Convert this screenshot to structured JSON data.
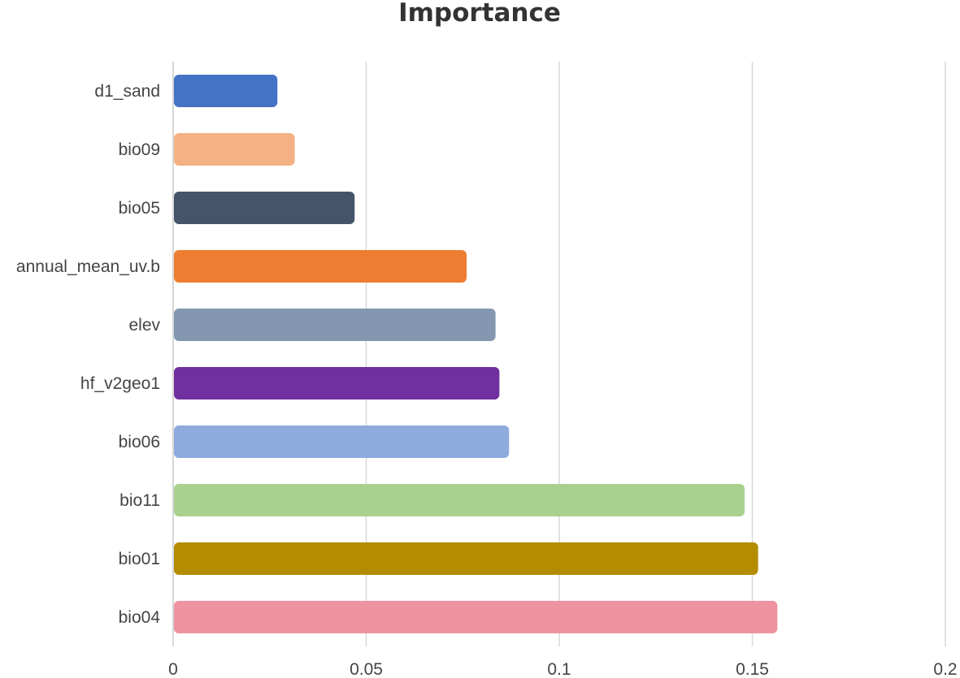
{
  "chart_data": {
    "type": "bar",
    "orientation": "horizontal",
    "title": "Importance",
    "xlabel": "",
    "ylabel": "",
    "xlim": [
      0,
      0.2
    ],
    "x_ticks": [
      "0",
      "0.05",
      "0.1",
      "0.15",
      "0.2"
    ],
    "grid": true,
    "legend": "none",
    "categories": [
      "d1_sand",
      "bio09",
      "bio05",
      "annual_mean_uv.b",
      "elev",
      "hf_v2geo1",
      "bio06",
      "bio11",
      "bio01",
      "bio04"
    ],
    "values": [
      0.027,
      0.0315,
      0.047,
      0.076,
      0.0835,
      0.0845,
      0.087,
      0.148,
      0.1515,
      0.1565
    ],
    "colors": [
      "#4472c4",
      "#f4b183",
      "#44546a",
      "#ed7d31",
      "#8497b0",
      "#7030a0",
      "#8faadc",
      "#a9d18e",
      "#b38c00",
      "#ee939f"
    ]
  }
}
